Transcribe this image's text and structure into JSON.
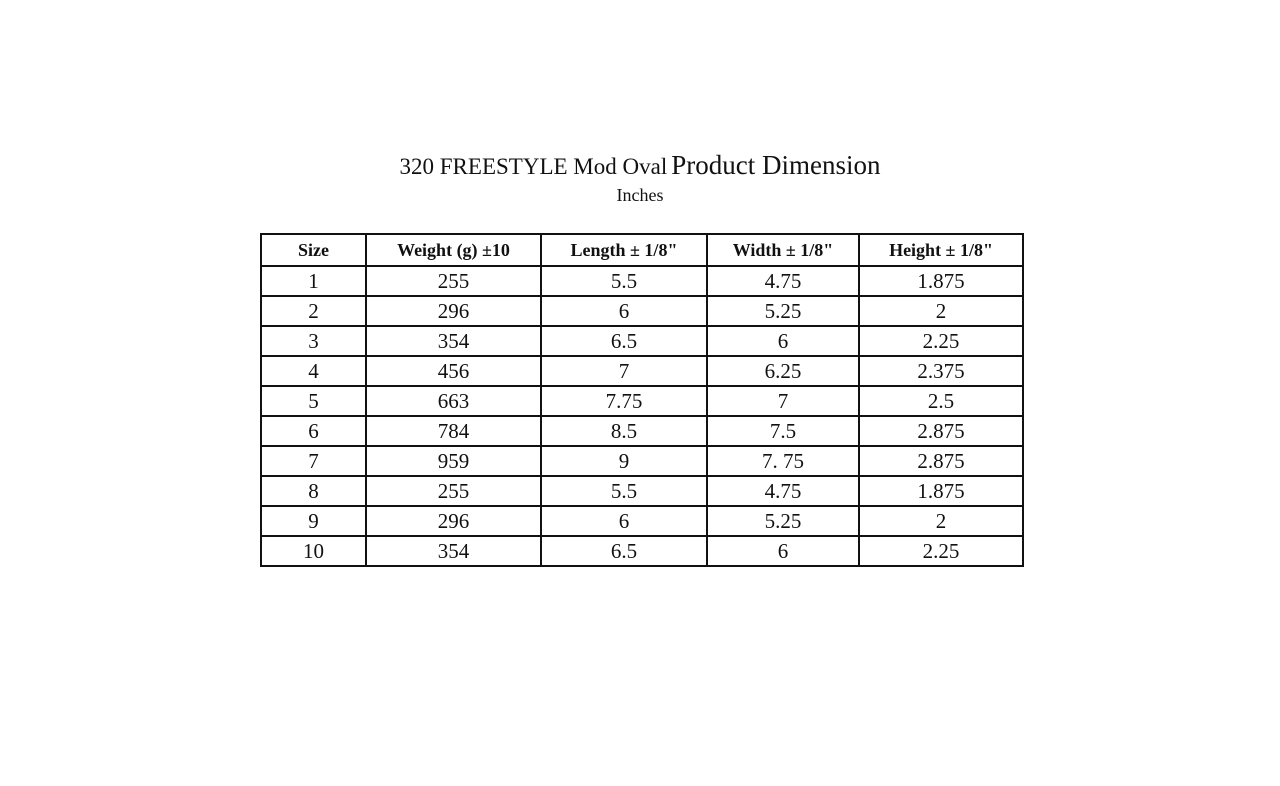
{
  "header": {
    "title": [
      "320 FREESTYLE Mod Oval",
      "Product Dimension"
    ],
    "subtitle": "Inches"
  },
  "table": {
    "columns": [
      "Size",
      "Weight (g) ±10",
      "Length ± 1/8\"",
      "Width ± 1/8\"",
      "Height ± 1/8\""
    ],
    "rows": [
      [
        "1",
        "255",
        "5.5",
        "4.75",
        "1.875"
      ],
      [
        "2",
        "296",
        "6",
        "5.25",
        "2"
      ],
      [
        "3",
        "354",
        "6.5",
        "6",
        "2.25"
      ],
      [
        "4",
        "456",
        "7",
        "6.25",
        "2.375"
      ],
      [
        "5",
        "663",
        "7.75",
        "7",
        "2.5"
      ],
      [
        "6",
        "784",
        "8.5",
        "7.5",
        "2.875"
      ],
      [
        "7",
        "959",
        "9",
        "7. 75",
        "2.875"
      ],
      [
        "8",
        "255",
        "5.5",
        "4.75",
        "1.875"
      ],
      [
        "9",
        "296",
        "6",
        "5.25",
        "2"
      ],
      [
        "10",
        "354",
        "6.5",
        "6",
        "2.25"
      ]
    ]
  }
}
